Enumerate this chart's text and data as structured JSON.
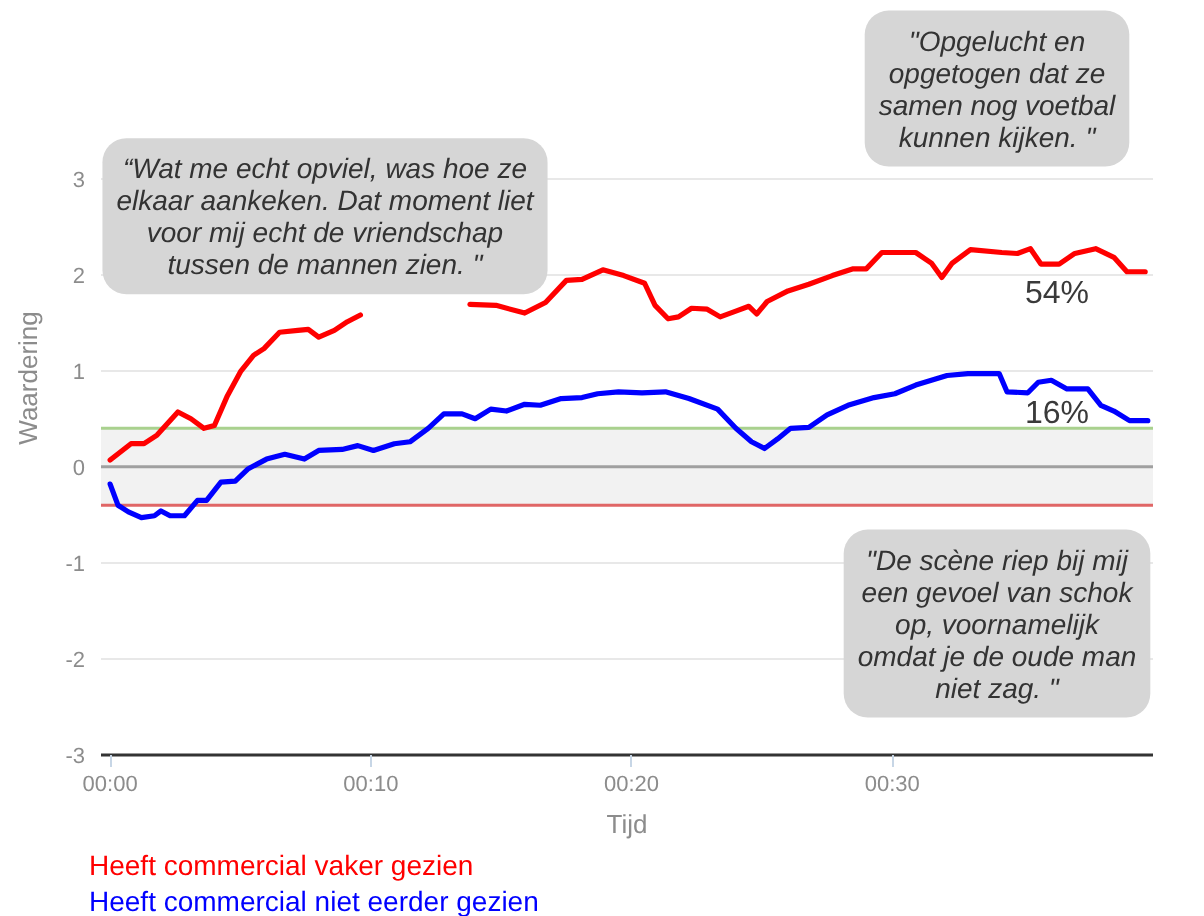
{
  "chart_data": {
    "type": "line",
    "xlabel": "Tijd",
    "ylabel": "Waardering",
    "xlim": [
      -0.35,
      40
    ],
    "xticks": [
      {
        "value": 0,
        "label": "00:00"
      },
      {
        "value": 10,
        "label": "00:10"
      },
      {
        "value": 20,
        "label": "00:20"
      },
      {
        "value": 30,
        "label": "00:30"
      }
    ],
    "ylim": [
      -3,
      3
    ],
    "yticks": [
      -3,
      -2,
      -1,
      0,
      1,
      2,
      3
    ],
    "grid": "y",
    "bands": [
      {
        "axis": "y",
        "from": -0.4,
        "to": 0.4,
        "color": "#f2f2f2"
      }
    ],
    "ref_lines": [
      {
        "axis": "y",
        "value": 0,
        "color": "#a0a0a0"
      },
      {
        "axis": "y",
        "value": 0.4,
        "color": "#a9d18e"
      },
      {
        "axis": "y",
        "value": -0.4,
        "color": "#e06666"
      }
    ],
    "series": [
      {
        "name": "Heeft commercial vaker gezien",
        "color": "#ff0000",
        "x": [
          0.0,
          0.8,
          1.3,
          1.8,
          2.6,
          3.1,
          3.6,
          4.0,
          4.5,
          5.0,
          5.5,
          5.9,
          6.5,
          7.2,
          7.6,
          8.0,
          8.6,
          9.1,
          9.6,
          11.7,
          13.8,
          14.8,
          15.9,
          16.7,
          17.5,
          18.1,
          18.9,
          19.7,
          20.5,
          20.9,
          21.4,
          21.8,
          22.3,
          22.9,
          23.4,
          24.0,
          24.5,
          24.8,
          25.2,
          26.0,
          26.8,
          27.7,
          28.5,
          29.0,
          29.6,
          30.9,
          31.5,
          31.9,
          32.3,
          33.0,
          34.2,
          34.8,
          35.3,
          35.7,
          36.4,
          37.0,
          37.8,
          38.5,
          39.0,
          39.7
        ],
        "values": [
          0.07,
          0.24,
          0.24,
          0.33,
          0.57,
          0.5,
          0.4,
          0.43,
          0.74,
          0.99,
          1.16,
          1.23,
          1.4,
          1.42,
          1.43,
          1.35,
          1.42,
          1.51,
          1.58,
          null,
          1.69,
          1.68,
          1.6,
          1.71,
          1.94,
          1.95,
          2.05,
          1.99,
          1.91,
          1.68,
          1.54,
          1.56,
          1.65,
          1.64,
          1.56,
          1.62,
          1.67,
          1.59,
          1.72,
          1.83,
          1.9,
          1.99,
          2.06,
          2.06,
          2.23,
          2.23,
          2.12,
          1.97,
          2.12,
          2.26,
          2.23,
          2.22,
          2.27,
          2.11,
          2.11,
          2.22,
          2.27,
          2.18,
          2.03,
          2.03
        ]
      },
      {
        "name": "Heeft commercial niet eerder gezien",
        "color": "#0000ff",
        "x": [
          0.0,
          0.3,
          0.7,
          1.2,
          1.7,
          1.95,
          2.3,
          2.85,
          3.35,
          3.7,
          4.25,
          4.8,
          5.3,
          6.0,
          6.7,
          7.45,
          8.0,
          8.9,
          9.5,
          10.1,
          10.9,
          11.5,
          12.2,
          12.8,
          13.5,
          14.0,
          14.6,
          15.2,
          15.9,
          16.5,
          17.3,
          18.1,
          18.7,
          19.5,
          20.4,
          21.3,
          22.2,
          23.3,
          24.0,
          24.6,
          25.1,
          25.6,
          26.1,
          26.8,
          27.5,
          28.3,
          29.3,
          30.1,
          30.9,
          31.5,
          32.1,
          32.9,
          34.1,
          34.4,
          35.2,
          35.6,
          36.1,
          36.7,
          37.5,
          38.0,
          38.5,
          39.1,
          39.8
        ],
        "values": [
          -0.18,
          -0.4,
          -0.47,
          -0.53,
          -0.51,
          -0.46,
          -0.51,
          -0.51,
          -0.35,
          -0.35,
          -0.16,
          -0.15,
          -0.02,
          0.08,
          0.13,
          0.08,
          0.17,
          0.18,
          0.22,
          0.17,
          0.24,
          0.26,
          0.4,
          0.55,
          0.55,
          0.5,
          0.6,
          0.58,
          0.65,
          0.64,
          0.71,
          0.72,
          0.76,
          0.78,
          0.77,
          0.78,
          0.71,
          0.6,
          0.4,
          0.26,
          0.19,
          0.29,
          0.4,
          0.41,
          0.54,
          0.64,
          0.72,
          0.76,
          0.85,
          0.9,
          0.95,
          0.97,
          0.97,
          0.78,
          0.77,
          0.88,
          0.9,
          0.81,
          0.81,
          0.64,
          0.58,
          0.48,
          0.48
        ]
      }
    ],
    "annotations": [
      "“Wat me echt opviel, was hoe ze\nelkaar aankeken. Dat moment liet\nvoor mij echt de vriendschap\ntussen de mannen zien. \"",
      "\"Opgelucht en\nopgetogen dat ze\nsamen nog voetbal\nkunnen kijken. \"",
      "\"De scène riep bij mij\neen gevoel van schok\nop, voornamelijk\nomdat je de oude man\nniet zag. \"",
      "54%",
      "16%"
    ]
  }
}
